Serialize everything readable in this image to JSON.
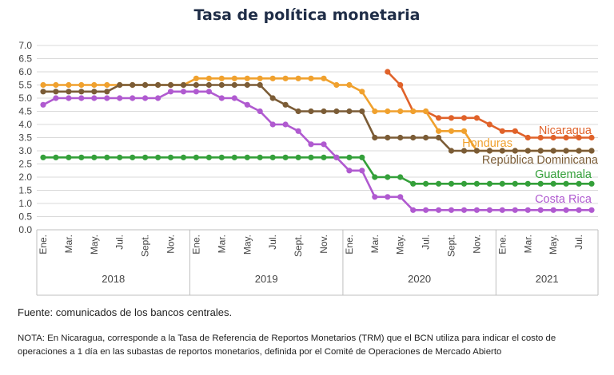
{
  "chart_data": {
    "type": "line",
    "title": "Tasa de política monetaria",
    "xlabel": "",
    "ylabel": "",
    "ylim": [
      0,
      7
    ],
    "yticks": [
      "0.0",
      "0.5",
      "1.0",
      "1.5",
      "2.0",
      "2.5",
      "3.0",
      "3.5",
      "4.0",
      "4.5",
      "5.0",
      "5.5",
      "6.0",
      "6.5",
      "7.0"
    ],
    "grid": "horizontal",
    "legend": "inline labels at right end of each line",
    "x_months": [
      "2018-01",
      "2018-02",
      "2018-03",
      "2018-04",
      "2018-05",
      "2018-06",
      "2018-07",
      "2018-08",
      "2018-09",
      "2018-10",
      "2018-11",
      "2018-12",
      "2019-01",
      "2019-02",
      "2019-03",
      "2019-04",
      "2019-05",
      "2019-06",
      "2019-07",
      "2019-08",
      "2019-09",
      "2019-10",
      "2019-11",
      "2019-12",
      "2020-01",
      "2020-02",
      "2020-03",
      "2020-04",
      "2020-05",
      "2020-06",
      "2020-07",
      "2020-08",
      "2020-09",
      "2020-10",
      "2020-11",
      "2020-12",
      "2021-01",
      "2021-02",
      "2021-03",
      "2021-04",
      "2021-05",
      "2021-06",
      "2021-07",
      "2021-08"
    ],
    "month_tick_labels": [
      "Ene.",
      "",
      "Mar.",
      "",
      "May.",
      "",
      "Jul.",
      "",
      "Sept.",
      "",
      "Nov.",
      "",
      "Ene.",
      "",
      "Mar.",
      "",
      "May.",
      "",
      "Jul.",
      "",
      "Sept.",
      "",
      "Nov.",
      "",
      "Ene.",
      "",
      "Mar.",
      "",
      "May.",
      "",
      "Jul.",
      "",
      "Sept.",
      "",
      "Nov.",
      "",
      "Ene.",
      "",
      "Mar.",
      "",
      "May.",
      "",
      "Jul.",
      ""
    ],
    "year_labels": [
      "2018",
      "2019",
      "2020",
      "2021"
    ],
    "series": [
      {
        "name": "Nicaragua",
        "color": "#e0622a",
        "values": [
          null,
          null,
          null,
          null,
          null,
          null,
          null,
          null,
          null,
          null,
          null,
          null,
          null,
          null,
          null,
          null,
          null,
          null,
          null,
          null,
          null,
          null,
          null,
          null,
          null,
          null,
          null,
          6.0,
          5.5,
          4.5,
          4.5,
          4.25,
          4.25,
          4.25,
          4.25,
          4.0,
          3.75,
          3.75,
          3.5,
          3.5,
          3.5,
          3.5,
          3.5,
          3.5
        ]
      },
      {
        "name": "Honduras",
        "color": "#f0a12e",
        "values": [
          5.5,
          5.5,
          5.5,
          5.5,
          5.5,
          5.5,
          5.5,
          5.5,
          5.5,
          5.5,
          5.5,
          5.5,
          5.75,
          5.75,
          5.75,
          5.75,
          5.75,
          5.75,
          5.75,
          5.75,
          5.75,
          5.75,
          5.75,
          5.5,
          5.5,
          5.25,
          4.5,
          4.5,
          4.5,
          4.5,
          4.5,
          3.75,
          3.75,
          3.75,
          3.0,
          3.0,
          3.0,
          3.0,
          3.0,
          3.0,
          3.0,
          3.0,
          3.0,
          3.0
        ]
      },
      {
        "name": "República Dominicana",
        "color": "#7b5c36",
        "values": [
          5.25,
          5.25,
          5.25,
          5.25,
          5.25,
          5.25,
          5.5,
          5.5,
          5.5,
          5.5,
          5.5,
          5.5,
          5.5,
          5.5,
          5.5,
          5.5,
          5.5,
          5.5,
          5.0,
          4.75,
          4.5,
          4.5,
          4.5,
          4.5,
          4.5,
          4.5,
          3.5,
          3.5,
          3.5,
          3.5,
          3.5,
          3.5,
          3.0,
          3.0,
          3.0,
          3.0,
          3.0,
          3.0,
          3.0,
          3.0,
          3.0,
          3.0,
          3.0,
          3.0
        ]
      },
      {
        "name": "Guatemala",
        "color": "#34a03a",
        "values": [
          2.75,
          2.75,
          2.75,
          2.75,
          2.75,
          2.75,
          2.75,
          2.75,
          2.75,
          2.75,
          2.75,
          2.75,
          2.75,
          2.75,
          2.75,
          2.75,
          2.75,
          2.75,
          2.75,
          2.75,
          2.75,
          2.75,
          2.75,
          2.75,
          2.75,
          2.75,
          2.0,
          2.0,
          2.0,
          1.75,
          1.75,
          1.75,
          1.75,
          1.75,
          1.75,
          1.75,
          1.75,
          1.75,
          1.75,
          1.75,
          1.75,
          1.75,
          1.75,
          1.75
        ]
      },
      {
        "name": "Costa Rica",
        "color": "#b05ad0",
        "values": [
          4.75,
          5.0,
          5.0,
          5.0,
          5.0,
          5.0,
          5.0,
          5.0,
          5.0,
          5.0,
          5.25,
          5.25,
          5.25,
          5.25,
          5.0,
          5.0,
          4.75,
          4.5,
          4.0,
          4.0,
          3.75,
          3.25,
          3.25,
          2.75,
          2.25,
          2.25,
          1.25,
          1.25,
          1.25,
          0.75,
          0.75,
          0.75,
          0.75,
          0.75,
          0.75,
          0.75,
          0.75,
          0.75,
          0.75,
          0.75,
          0.75,
          0.75,
          0.75,
          0.75
        ]
      }
    ]
  },
  "source": "Fuente: comunicados de los bancos centrales.",
  "note": "NOTA: En Nicaragua, corresponde a la Tasa de Referencia de Reportos Monetarios (TRM) que el BCN utiliza para indicar el costo de operaciones a 1 día en las subastas de reportos monetarios, definida por el Comité de Operaciones de Mercado Abierto"
}
